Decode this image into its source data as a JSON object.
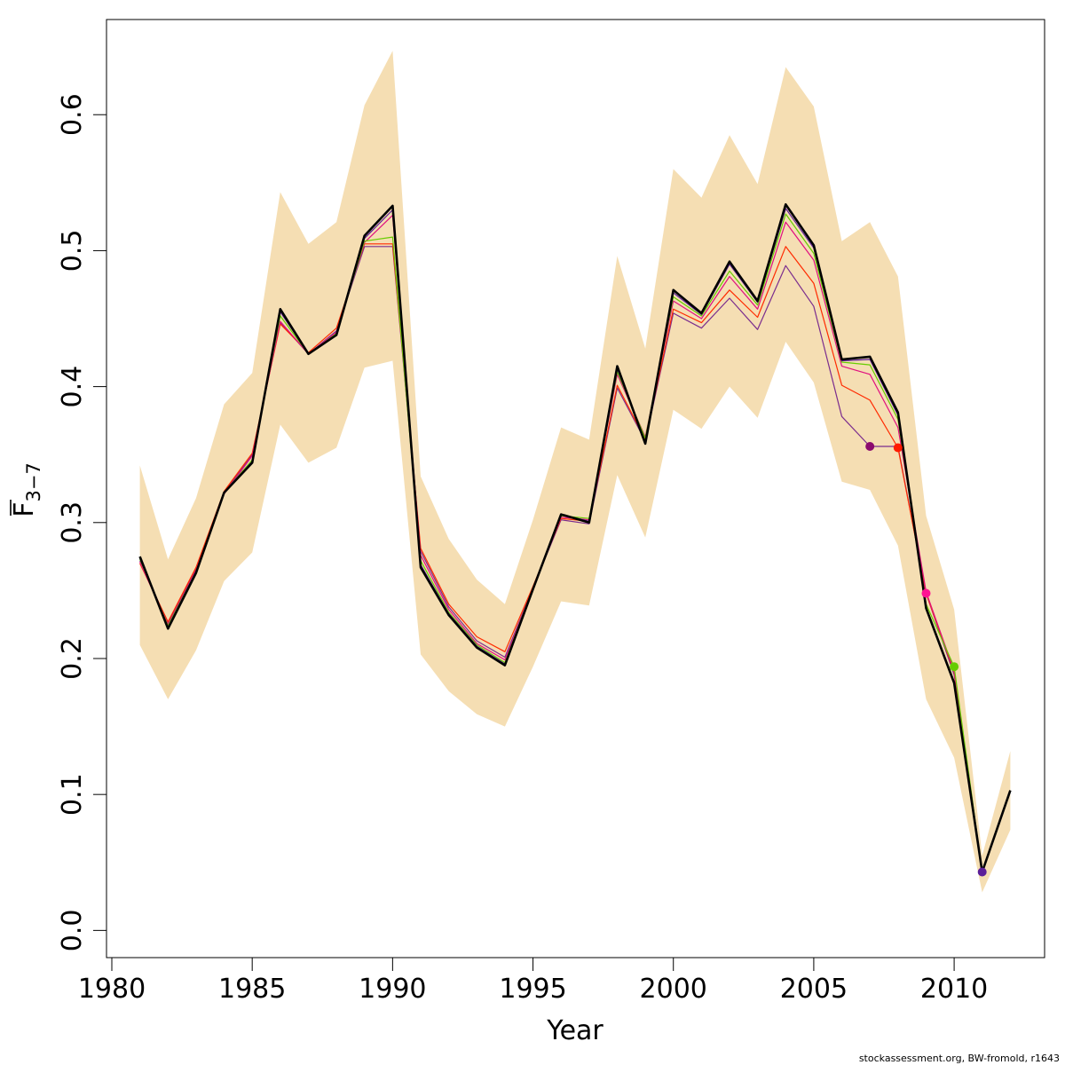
{
  "chart_data": {
    "type": "line",
    "xlabel": "Year",
    "ylabel": "F",
    "ylabel_subscript": "3−7",
    "xlim": [
      1980,
      2013
    ],
    "ylim": [
      -0.02,
      0.67
    ],
    "x_ticks": [
      "1980",
      "1985",
      "1990",
      "1995",
      "2000",
      "2005",
      "2010"
    ],
    "y_ticks": [
      "0.0",
      "0.1",
      "0.2",
      "0.3",
      "0.4",
      "0.5",
      "0.6"
    ],
    "credit": "stockassessment.org, BW-fromold, r1643",
    "colors": {
      "band": "#F5DEB3",
      "main": "#000000"
    },
    "band": {
      "x": [
        1981,
        1982,
        1983,
        1984,
        1985,
        1986,
        1987,
        1988,
        1989,
        1990,
        1991,
        1992,
        1993,
        1994,
        1995,
        1996,
        1997,
        1998,
        1999,
        2000,
        2001,
        2002,
        2003,
        2004,
        2005,
        2006,
        2007,
        2008,
        2009,
        2010,
        2011,
        2012
      ],
      "upper": [
        0.342,
        0.273,
        0.318,
        0.387,
        0.41,
        0.543,
        0.505,
        0.521,
        0.607,
        0.647,
        0.334,
        0.288,
        0.258,
        0.24,
        0.302,
        0.37,
        0.361,
        0.496,
        0.428,
        0.56,
        0.539,
        0.585,
        0.549,
        0.635,
        0.606,
        0.507,
        0.521,
        0.481,
        0.305,
        0.236,
        0.055,
        0.132
      ],
      "lower": [
        0.21,
        0.17,
        0.206,
        0.257,
        0.278,
        0.372,
        0.344,
        0.355,
        0.414,
        0.419,
        0.203,
        0.176,
        0.159,
        0.15,
        0.194,
        0.242,
        0.239,
        0.335,
        0.289,
        0.383,
        0.369,
        0.4,
        0.377,
        0.433,
        0.403,
        0.33,
        0.324,
        0.283,
        0.17,
        0.127,
        0.028,
        0.074
      ]
    },
    "series": [
      {
        "color": "#000000",
        "width": 2.6,
        "marker": false,
        "x": [
          1981,
          1982,
          1983,
          1984,
          1985,
          1986,
          1987,
          1988,
          1989,
          1990,
          1991,
          1992,
          1993,
          1994,
          1995,
          1996,
          1997,
          1998,
          1999,
          2000,
          2001,
          2002,
          2003,
          2004,
          2005,
          2006,
          2007,
          2008,
          2009,
          2010,
          2011,
          2012
        ],
        "values": [
          0.275,
          0.222,
          0.263,
          0.322,
          0.344,
          0.457,
          0.424,
          0.438,
          0.511,
          0.533,
          0.267,
          0.232,
          0.208,
          0.195,
          0.251,
          0.306,
          0.3,
          0.415,
          0.358,
          0.471,
          0.454,
          0.492,
          0.463,
          0.534,
          0.504,
          0.42,
          0.422,
          0.381,
          0.237,
          0.182,
          0.043,
          0.103
        ]
      },
      {
        "color": "#7B2D8E",
        "width": 1.2,
        "marker": true,
        "x": [
          1981,
          1982,
          1983,
          1984,
          1985,
          1986,
          1987,
          1988,
          1989,
          1990,
          1991,
          1992,
          1993,
          1994,
          1995,
          1996,
          1997,
          1998,
          1999,
          2000,
          2001,
          2002,
          2003,
          2004,
          2005,
          2006,
          2007,
          2008,
          2009,
          2010,
          2011
        ],
        "values": [
          0.272,
          0.226,
          0.266,
          0.322,
          0.35,
          0.447,
          0.424,
          0.441,
          0.503,
          0.503,
          0.279,
          0.238,
          0.213,
          0.201,
          0.252,
          0.302,
          0.299,
          0.399,
          0.36,
          0.454,
          0.443,
          0.465,
          0.442,
          0.489,
          0.459,
          0.378,
          0.356,
          0.356,
          0.248,
          0.188,
          0.043
        ]
      },
      {
        "color": "#FF2A00",
        "width": 1.2,
        "marker": true,
        "x": [
          1981,
          1982,
          1983,
          1984,
          1985,
          1986,
          1987,
          1988,
          1989,
          1990,
          1991,
          1992,
          1993,
          1994,
          1995,
          1996,
          1997,
          1998,
          1999,
          2000,
          2001,
          2002,
          2003,
          2004,
          2005,
          2006,
          2007,
          2008,
          2009,
          2010,
          2011
        ],
        "values": [
          0.27,
          0.227,
          0.267,
          0.323,
          0.351,
          0.446,
          0.425,
          0.443,
          0.505,
          0.505,
          0.281,
          0.24,
          0.216,
          0.205,
          0.253,
          0.303,
          0.301,
          0.401,
          0.361,
          0.457,
          0.447,
          0.471,
          0.451,
          0.503,
          0.476,
          0.401,
          0.39,
          0.355,
          0.248,
          0.19,
          0.043
        ]
      },
      {
        "color": "#E0107F",
        "width": 1.2,
        "marker": true,
        "x": [
          1981,
          1982,
          1983,
          1984,
          1985,
          1986,
          1987,
          1988,
          1989,
          1990,
          1991,
          1992,
          1993,
          1994,
          1995,
          1996,
          1997,
          1998,
          1999,
          2000,
          2001,
          2002,
          2003,
          2004,
          2005,
          2006,
          2007,
          2008,
          2009,
          2010,
          2011
        ],
        "values": [
          0.271,
          0.225,
          0.265,
          0.321,
          0.349,
          0.448,
          0.424,
          0.44,
          0.506,
          0.526,
          0.276,
          0.236,
          0.211,
          0.199,
          0.252,
          0.304,
          0.302,
          0.409,
          0.363,
          0.463,
          0.45,
          0.481,
          0.457,
          0.521,
          0.493,
          0.415,
          0.409,
          0.37,
          0.249,
          0.191,
          0.043
        ]
      },
      {
        "color": "#66CC00",
        "width": 1.2,
        "marker": true,
        "x": [
          1981,
          1982,
          1983,
          1984,
          1985,
          1986,
          1987,
          1988,
          1989,
          1990,
          1991,
          1992,
          1993,
          1994,
          1995,
          1996,
          1997,
          1998,
          1999,
          2000,
          2001,
          2002,
          2003,
          2004,
          2005,
          2006,
          2007,
          2008,
          2009,
          2010,
          2011
        ],
        "values": [
          0.273,
          0.224,
          0.264,
          0.322,
          0.346,
          0.452,
          0.424,
          0.439,
          0.507,
          0.51,
          0.272,
          0.234,
          0.21,
          0.197,
          0.252,
          0.305,
          0.303,
          0.411,
          0.362,
          0.466,
          0.452,
          0.485,
          0.46,
          0.527,
          0.498,
          0.418,
          0.416,
          0.376,
          0.24,
          0.194,
          0.043
        ]
      },
      {
        "color": "#5B1E99",
        "width": 1.2,
        "marker": true,
        "x": [
          1981,
          1982,
          1983,
          1984,
          1985,
          1986,
          1987,
          1988,
          1989,
          1990,
          1991,
          1992,
          1993,
          1994,
          1995,
          1996,
          1997,
          1998,
          1999,
          2000,
          2001,
          2002,
          2003,
          2004,
          2005,
          2006,
          2007,
          2008,
          2009,
          2010,
          2011
        ],
        "values": [
          0.274,
          0.223,
          0.264,
          0.322,
          0.345,
          0.455,
          0.424,
          0.438,
          0.509,
          0.53,
          0.269,
          0.233,
          0.209,
          0.196,
          0.251,
          0.306,
          0.301,
          0.413,
          0.359,
          0.469,
          0.453,
          0.49,
          0.462,
          0.531,
          0.502,
          0.419,
          0.42,
          0.379,
          0.238,
          0.183,
          0.043
        ]
      }
    ],
    "markers": [
      {
        "x": 2007,
        "y": 0.356,
        "color": "#8B0A6E"
      },
      {
        "x": 2008,
        "y": 0.355,
        "color": "#FF1A00"
      },
      {
        "x": 2009,
        "y": 0.248,
        "color": "#FF1493"
      },
      {
        "x": 2010,
        "y": 0.194,
        "color": "#66CC00"
      },
      {
        "x": 2011,
        "y": 0.043,
        "color": "#5B1E99"
      }
    ]
  }
}
